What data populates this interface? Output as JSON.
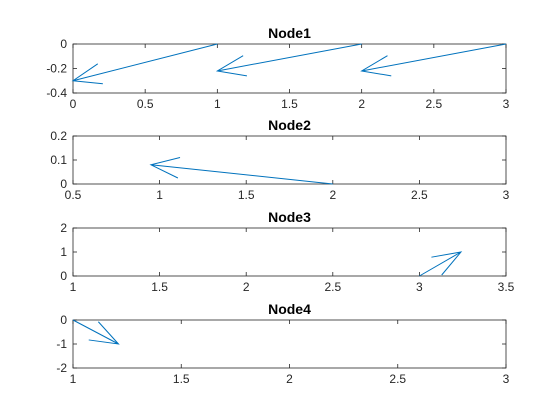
{
  "colors": {
    "series": "#0072BD",
    "axis": "#262626"
  },
  "chart_data": [
    {
      "type": "quiver",
      "title": "Node1",
      "xlim": [
        0,
        3
      ],
      "ylim": [
        -0.4,
        0
      ],
      "xticks": [
        0,
        0.5,
        1,
        1.5,
        2,
        2.5,
        3
      ],
      "xtick_labels": [
        "0",
        "0.5",
        "1",
        "1.5",
        "2",
        "2.5",
        "3"
      ],
      "yticks": [
        -0.4,
        -0.2,
        0
      ],
      "ytick_labels": [
        "-0.4",
        "-0.2",
        "0"
      ],
      "arrows": [
        {
          "x0": 1,
          "y0": 0,
          "x1": 0,
          "y1": -0.3
        },
        {
          "x0": 2,
          "y0": 0,
          "x1": 1,
          "y1": -0.22
        },
        {
          "x0": 3,
          "y0": 0,
          "x1": 2,
          "y1": -0.22
        }
      ]
    },
    {
      "type": "quiver",
      "title": "Node2",
      "xlim": [
        0.5,
        3
      ],
      "ylim": [
        0,
        0.2
      ],
      "xticks": [
        0.5,
        1,
        1.5,
        2,
        2.5,
        3
      ],
      "xtick_labels": [
        "0.5",
        "1",
        "1.5",
        "2",
        "2.5",
        "3"
      ],
      "yticks": [
        0,
        0.1,
        0.2
      ],
      "ytick_labels": [
        "0",
        "0.1",
        "0.2"
      ],
      "arrows": [
        {
          "x0": 2,
          "y0": 0,
          "x1": 0.95,
          "y1": 0.08
        }
      ]
    },
    {
      "type": "quiver",
      "title": "Node3",
      "xlim": [
        1,
        3.5
      ],
      "ylim": [
        0,
        2
      ],
      "xticks": [
        1,
        1.5,
        2,
        2.5,
        3,
        3.5
      ],
      "xtick_labels": [
        "1",
        "1.5",
        "2",
        "2.5",
        "3",
        "3.5"
      ],
      "yticks": [
        0,
        1,
        2
      ],
      "ytick_labels": [
        "0",
        "1",
        "2"
      ],
      "arrows": [
        {
          "x0": 3,
          "y0": 0,
          "x1": 3.24,
          "y1": 1
        }
      ]
    },
    {
      "type": "quiver",
      "title": "Node4",
      "xlim": [
        1,
        3
      ],
      "ylim": [
        -2,
        0
      ],
      "xticks": [
        1,
        1.5,
        2,
        2.5,
        3
      ],
      "xtick_labels": [
        "1",
        "1.5",
        "2",
        "2.5",
        "3"
      ],
      "yticks": [
        -2,
        -1,
        0
      ],
      "ytick_labels": [
        "-2",
        "-1",
        "0"
      ],
      "arrows": [
        {
          "x0": 1,
          "y0": 0,
          "x1": 1.21,
          "y1": -1
        }
      ]
    }
  ]
}
